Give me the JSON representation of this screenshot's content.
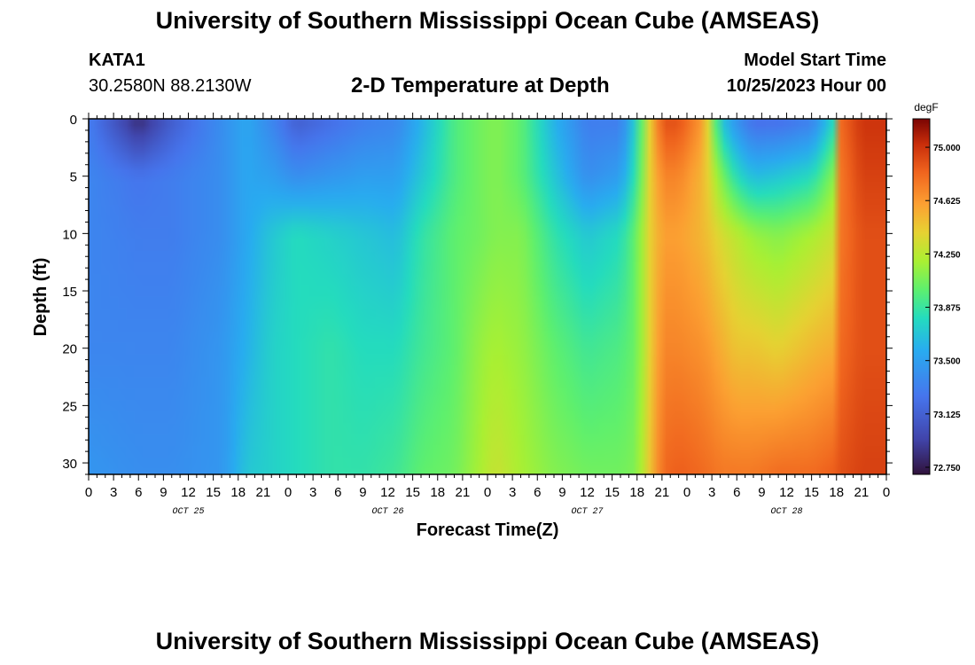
{
  "header": {
    "title": "University of Southern Mississippi Ocean Cube (AMSEAS)",
    "station": "KATA1",
    "coords": "30.2580N  88.2130W",
    "plot_title": "2-D Temperature at Depth",
    "model_start_label": "Model Start Time",
    "model_start_value": "10/25/2023 Hour 00"
  },
  "footer": {
    "title": "University of Southern Mississippi Ocean Cube (AMSEAS)"
  },
  "chart_data": {
    "type": "heatmap",
    "title": "2-D Temperature at Depth",
    "xlabel": "Forecast Time(Z)",
    "ylabel": "Depth (ft)",
    "units": "degF",
    "x_range_hours": [
      0,
      96
    ],
    "y_range_ft": [
      0,
      31
    ],
    "x_tick_labels": [
      "0",
      "3",
      "6",
      "9",
      "12",
      "15",
      "18",
      "21",
      "0",
      "3",
      "6",
      "9",
      "12",
      "15",
      "18",
      "21",
      "0",
      "3",
      "6",
      "9",
      "12",
      "15",
      "18",
      "21",
      "0",
      "3",
      "6",
      "9",
      "12",
      "15",
      "18",
      "21",
      "0"
    ],
    "y_ticks": [
      0,
      5,
      10,
      15,
      20,
      25,
      30
    ],
    "date_labels": [
      {
        "text": "OCT 25",
        "hour": 12
      },
      {
        "text": "OCT 26",
        "hour": 36
      },
      {
        "text": "OCT 27",
        "hour": 60
      },
      {
        "text": "OCT 28",
        "hour": 84
      }
    ],
    "colorbar": {
      "min": 72.7,
      "max": 75.2,
      "ticks": [
        "75.000",
        "74.625",
        "74.250",
        "73.875",
        "73.500",
        "73.125",
        "72.750"
      ]
    },
    "temperature_profile_degF": {
      "depths_ft": [
        0,
        5,
        10,
        20,
        31
      ],
      "hours": [
        0,
        6,
        10,
        16,
        19,
        22,
        25,
        29,
        33,
        37,
        40,
        44,
        47,
        49,
        52,
        56,
        60,
        64,
        66,
        67.5,
        69,
        71,
        74,
        76,
        78,
        80,
        83,
        87,
        89.5,
        90.5,
        93,
        96
      ],
      "rows": [
        [
          73.3,
          72.8,
          73.1,
          73.4,
          73.55,
          73.35,
          73.1,
          73.2,
          73.3,
          73.35,
          73.6,
          73.95,
          74.05,
          74.1,
          74.0,
          73.6,
          73.3,
          73.3,
          73.8,
          74.4,
          74.9,
          74.9,
          74.6,
          73.7,
          73.4,
          73.2,
          73.2,
          73.3,
          73.75,
          74.8,
          75.0,
          75.0
        ],
        [
          73.35,
          73.25,
          73.3,
          73.4,
          73.55,
          73.5,
          73.4,
          73.45,
          73.5,
          73.5,
          73.7,
          73.95,
          74.05,
          74.1,
          74.0,
          73.7,
          73.4,
          73.5,
          73.9,
          74.4,
          74.7,
          74.7,
          74.5,
          74.1,
          73.8,
          73.65,
          73.7,
          73.8,
          74.1,
          74.75,
          74.95,
          74.95
        ],
        [
          73.35,
          73.3,
          73.3,
          73.4,
          73.55,
          73.7,
          73.8,
          73.75,
          73.7,
          73.65,
          73.85,
          74.0,
          74.05,
          74.1,
          74.1,
          73.85,
          73.7,
          73.8,
          74.05,
          74.4,
          74.6,
          74.6,
          74.5,
          74.35,
          74.25,
          74.15,
          74.1,
          74.2,
          74.3,
          74.75,
          74.9,
          74.9
        ],
        [
          73.35,
          73.35,
          73.35,
          73.45,
          73.6,
          73.75,
          73.8,
          73.85,
          73.8,
          73.8,
          73.9,
          74.0,
          74.15,
          74.2,
          74.15,
          74.0,
          73.9,
          73.95,
          74.05,
          74.4,
          74.7,
          74.7,
          74.65,
          74.55,
          74.45,
          74.45,
          74.4,
          74.5,
          74.55,
          74.8,
          74.9,
          74.9
        ],
        [
          73.45,
          73.4,
          73.4,
          73.45,
          73.7,
          73.75,
          73.8,
          73.85,
          73.85,
          73.9,
          74.0,
          74.05,
          74.2,
          74.3,
          74.2,
          74.1,
          74.05,
          74.05,
          74.1,
          74.45,
          74.8,
          74.85,
          74.8,
          74.75,
          74.75,
          74.75,
          74.8,
          74.8,
          74.85,
          74.9,
          74.95,
          74.95
        ]
      ]
    }
  }
}
